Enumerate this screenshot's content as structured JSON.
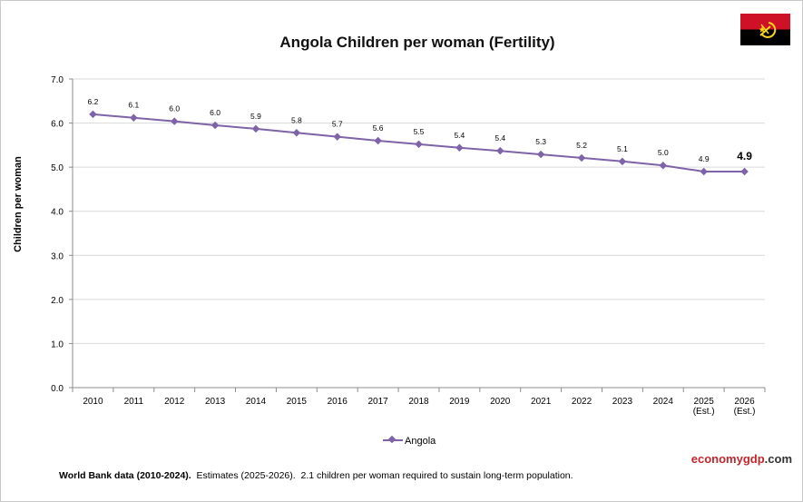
{
  "colors": {
    "series": "#7f63a8",
    "brand_red": "#c0272d",
    "brand_dark": "#333333"
  },
  "flag": {
    "icon": "angola-flag-icon"
  },
  "footer": {
    "source": "World Bank data (2010-2024).",
    "estimates": "Estimates  (2025-2026).",
    "note": "2.1 children per woman required to sustain long-term population."
  },
  "brand": {
    "part1": "economy",
    "part2": "gdp",
    "part3": ".com"
  },
  "chart_data": {
    "type": "line",
    "title": "Angola Children per woman (Fertility)",
    "ylabel": "Children per woman",
    "xlabel": "",
    "ylim": [
      0,
      7
    ],
    "yticks": [
      "0.0",
      "1.0",
      "2.0",
      "3.0",
      "4.0",
      "5.0",
      "6.0",
      "7.0"
    ],
    "grid": true,
    "legend_position": "bottom",
    "categories": [
      [
        "2010"
      ],
      [
        "2011"
      ],
      [
        "2012"
      ],
      [
        "2013"
      ],
      [
        "2014"
      ],
      [
        "2015"
      ],
      [
        "2016"
      ],
      [
        "2017"
      ],
      [
        "2018"
      ],
      [
        "2019"
      ],
      [
        "2020"
      ],
      [
        "2021"
      ],
      [
        "2022"
      ],
      [
        "2023"
      ],
      [
        "2024"
      ],
      [
        "2025",
        "(Est.)"
      ],
      [
        "2026",
        "(Est.)"
      ]
    ],
    "series": [
      {
        "name": "Angola",
        "values": [
          6.2,
          6.12,
          6.04,
          5.95,
          5.87,
          5.78,
          5.69,
          5.6,
          5.52,
          5.44,
          5.37,
          5.29,
          5.21,
          5.13,
          5.04,
          4.9,
          4.9
        ],
        "labels": [
          "6.2",
          "6.1",
          "6.0",
          "6.0",
          "5.9",
          "5.8",
          "5.7",
          "5.6",
          "5.5",
          "5.4",
          "5.4",
          "5.3",
          "5.2",
          "5.1",
          "5.0",
          "4.9",
          "4.9"
        ]
      }
    ]
  }
}
